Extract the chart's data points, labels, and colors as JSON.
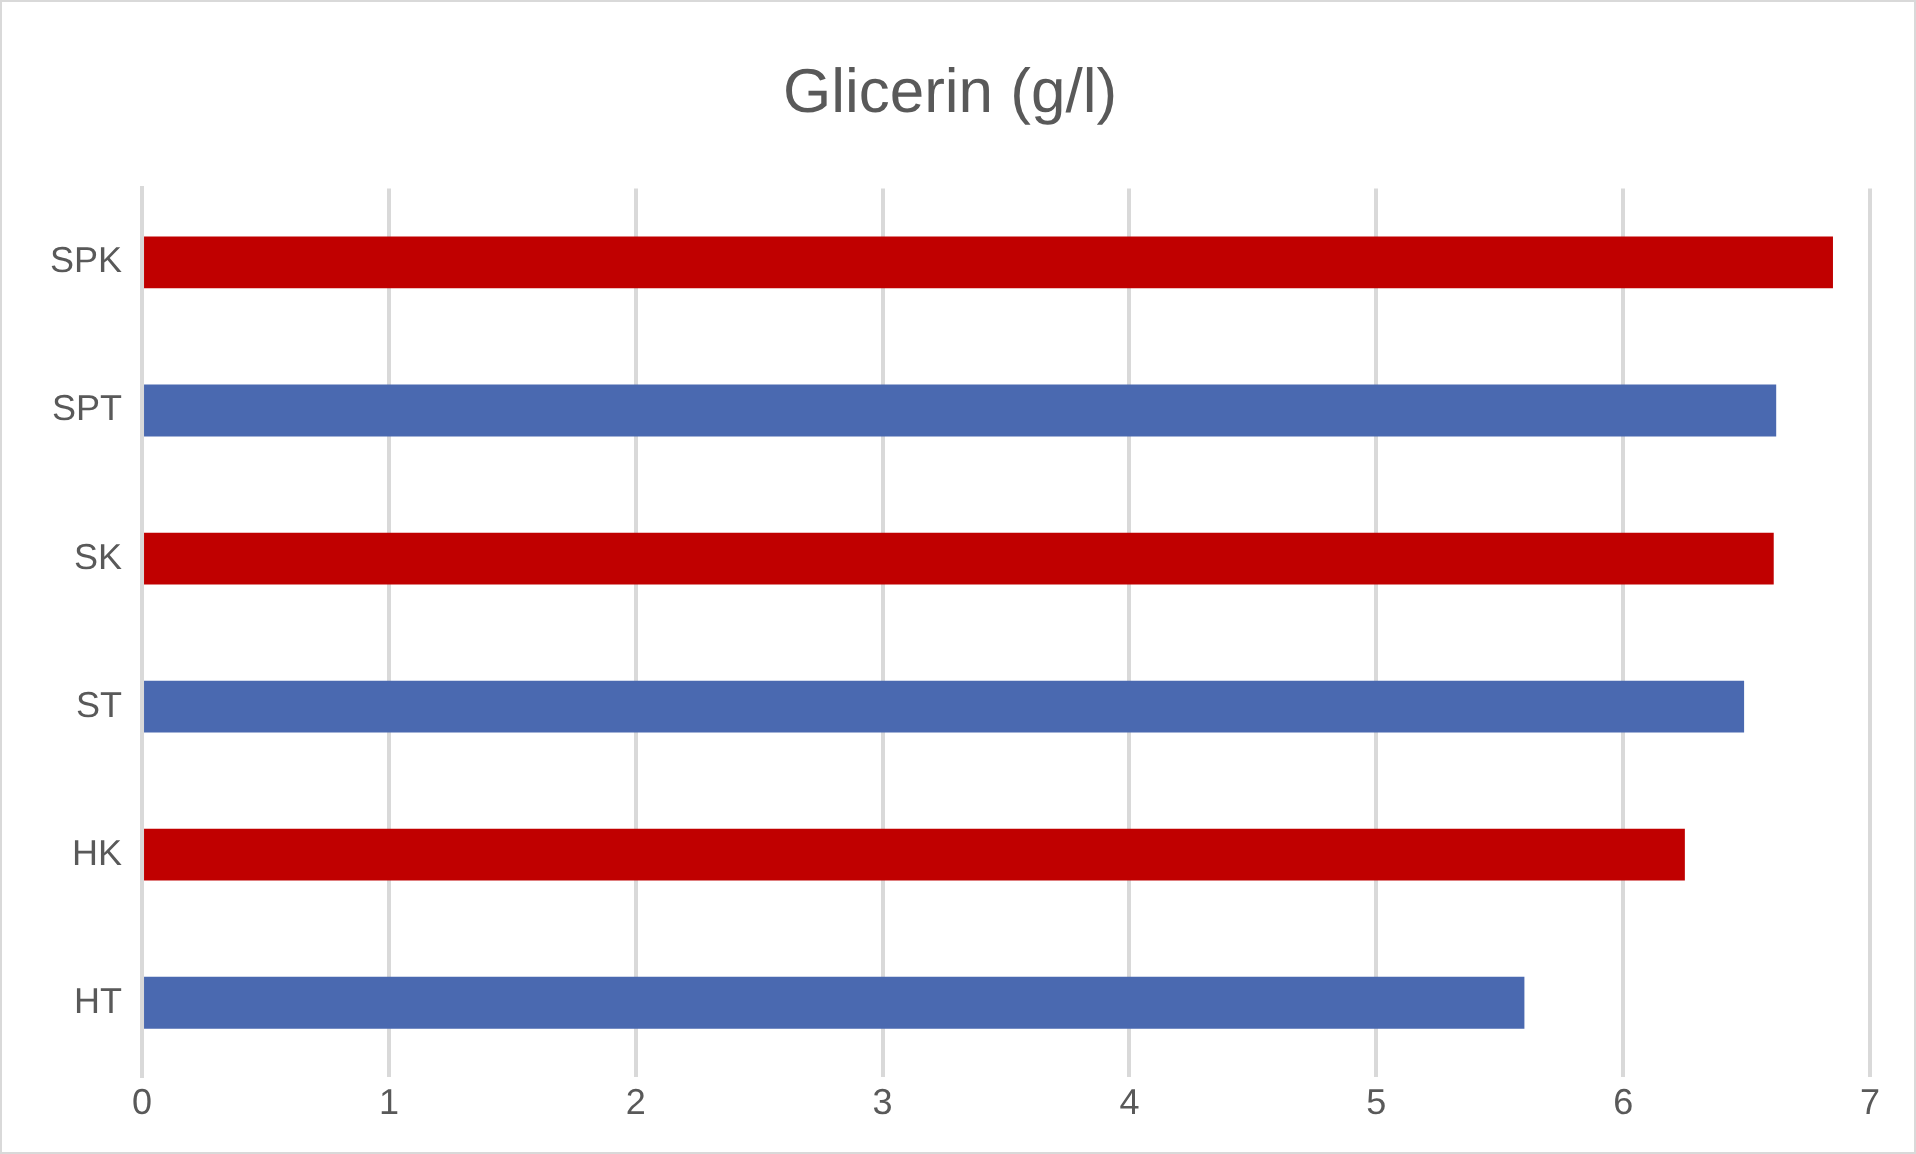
{
  "chart_data": {
    "type": "bar",
    "title": "Glicerin (g/l)",
    "orientation": "horizontal",
    "categories": [
      "SPK",
      "SPT",
      "SK",
      "ST",
      "HK",
      "HT"
    ],
    "values": [
      6.85,
      6.62,
      6.61,
      6.49,
      6.25,
      5.6
    ],
    "colors": [
      "#c00000",
      "#4a69b0",
      "#c00000",
      "#4a69b0",
      "#c00000",
      "#4a69b0"
    ],
    "xlim": [
      0,
      7
    ],
    "xticks": [
      0,
      1,
      2,
      3,
      4,
      5,
      6,
      7
    ],
    "grid": "x",
    "legend": false
  }
}
